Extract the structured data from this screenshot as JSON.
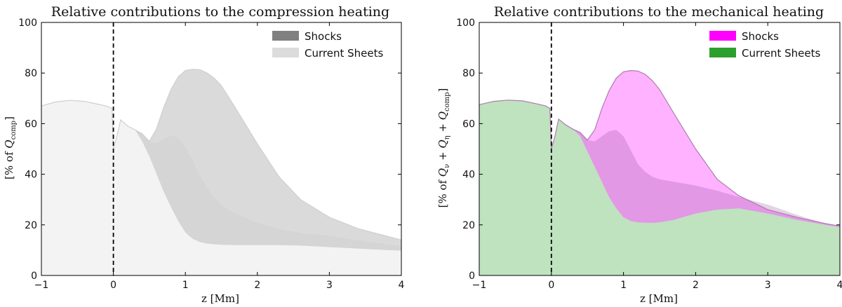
{
  "chart_data": [
    {
      "type": "area",
      "title": "Relative contributions to the compression heating",
      "xlabel": "z [Mm]",
      "ylabel": "[% of Q_comp]",
      "ylabel_parts": {
        "prefix": "[% of ",
        "symbol": "Q",
        "subscript": "comp",
        "suffix": "]"
      },
      "xlim": [
        -1,
        4
      ],
      "ylim": [
        0,
        100
      ],
      "xticks": [
        "−1",
        "0",
        "1",
        "2",
        "3",
        "4"
      ],
      "yticks": [
        "0",
        "20",
        "40",
        "60",
        "80",
        "100"
      ],
      "legend_position": "top-right",
      "vline_x": 0,
      "base_fill": "#f3f3f3",
      "base_stroke": "#cfcfcf",
      "x": [
        -1.0,
        -0.8,
        -0.6,
        -0.4,
        -0.2,
        -0.08,
        -0.02,
        0.0,
        0.05,
        0.1,
        0.2,
        0.3,
        0.4,
        0.5,
        0.6,
        0.7,
        0.8,
        0.9,
        1.0,
        1.1,
        1.2,
        1.3,
        1.4,
        1.5,
        1.7,
        2.0,
        2.3,
        2.6,
        3.0,
        3.4,
        3.8,
        4.0
      ],
      "total": [
        67.0,
        68.6,
        69.2,
        68.8,
        67.6,
        66.8,
        66.0,
        50.0,
        55.0,
        61.5,
        59.0,
        57.6,
        56.0,
        53.0,
        58.0,
        66.5,
        73.5,
        78.5,
        81.0,
        81.5,
        81.3,
        80.0,
        78.0,
        75.0,
        66.0,
        52.0,
        39.0,
        30.0,
        23.0,
        18.5,
        15.5,
        14.0
      ],
      "series": [
        {
          "name": "Shocks",
          "color": "#808080",
          "values": [
            67.0,
            68.6,
            69.2,
            68.8,
            67.6,
            66.8,
            66.0,
            50.0,
            55.0,
            61.5,
            59.0,
            57.6,
            56.0,
            53.0,
            52.5,
            54.0,
            55.8,
            54.5,
            51.0,
            46.0,
            40.0,
            35.0,
            31.0,
            28.0,
            24.5,
            21.0,
            18.5,
            17.0,
            15.8,
            14.0,
            12.5,
            11.8
          ]
        },
        {
          "name": "Current Sheets",
          "color": "#dcdcdc",
          "values": [
            67.0,
            68.6,
            69.2,
            68.8,
            67.6,
            66.8,
            66.0,
            50.0,
            55.0,
            61.5,
            59.0,
            57.6,
            53.0,
            47.0,
            40.0,
            33.0,
            27.0,
            21.5,
            17.0,
            14.5,
            13.2,
            12.6,
            12.3,
            12.1,
            12.0,
            12.0,
            12.0,
            11.8,
            11.2,
            10.6,
            10.0,
            9.8
          ]
        }
      ]
    },
    {
      "type": "area",
      "title": "Relative contributions to the mechanical heating",
      "xlabel": "z [Mm]",
      "ylabel": "[% of Q_ν + Q_η + Q_comp]",
      "ylabel_parts": {
        "prefix": "[% of ",
        "t1": "Q",
        "s1": "ν",
        "plus1": " + ",
        "t2": "Q",
        "s2": "η",
        "plus2": " + ",
        "t3": "Q",
        "s3": "comp",
        "suffix": "]"
      },
      "xlim": [
        -1,
        4
      ],
      "ylim": [
        0,
        100
      ],
      "xticks": [
        "−1",
        "0",
        "1",
        "2",
        "3",
        "4"
      ],
      "yticks": [
        "0",
        "20",
        "40",
        "60",
        "80",
        "100"
      ],
      "legend_position": "top-right",
      "vline_x": 0,
      "x": [
        -1.0,
        -0.8,
        -0.6,
        -0.4,
        -0.2,
        -0.08,
        -0.02,
        0.0,
        0.05,
        0.1,
        0.2,
        0.3,
        0.4,
        0.5,
        0.6,
        0.7,
        0.8,
        0.9,
        1.0,
        1.1,
        1.2,
        1.3,
        1.4,
        1.5,
        1.7,
        2.0,
        2.3,
        2.6,
        3.0,
        3.4,
        3.8,
        4.0
      ],
      "total": [
        67.5,
        68.8,
        69.3,
        69.0,
        67.8,
        67.0,
        66.0,
        50.0,
        55.0,
        61.8,
        59.5,
        57.8,
        56.5,
        53.5,
        57.5,
        66.0,
        73.0,
        78.0,
        80.5,
        81.0,
        80.8,
        79.5,
        77.0,
        73.5,
        64.0,
        50.0,
        38.0,
        31.5,
        26.0,
        23.0,
        20.5,
        19.5
      ],
      "series": [
        {
          "name": "Shocks",
          "color": "#ff00ff",
          "fill_opacity": 0.3,
          "values": [
            67.5,
            68.8,
            69.3,
            69.0,
            67.8,
            67.0,
            66.0,
            50.0,
            55.0,
            61.8,
            59.5,
            57.8,
            56.5,
            53.5,
            53.0,
            55.0,
            57.0,
            57.5,
            55.0,
            49.5,
            44.0,
            41.0,
            39.0,
            38.0,
            37.0,
            35.5,
            33.5,
            31.0,
            28.0,
            24.0,
            20.5,
            19.0
          ]
        },
        {
          "name": "Current Sheets",
          "color": "#2ca02c",
          "fill_opacity": 0.3,
          "values": [
            67.5,
            68.8,
            69.3,
            69.0,
            67.8,
            67.0,
            66.0,
            50.0,
            55.0,
            61.8,
            59.5,
            57.8,
            55.0,
            49.0,
            43.0,
            37.0,
            31.0,
            26.5,
            23.0,
            21.5,
            21.0,
            20.8,
            20.8,
            21.0,
            22.0,
            24.5,
            26.0,
            26.5,
            24.5,
            22.0,
            20.0,
            19.0
          ]
        }
      ]
    }
  ]
}
